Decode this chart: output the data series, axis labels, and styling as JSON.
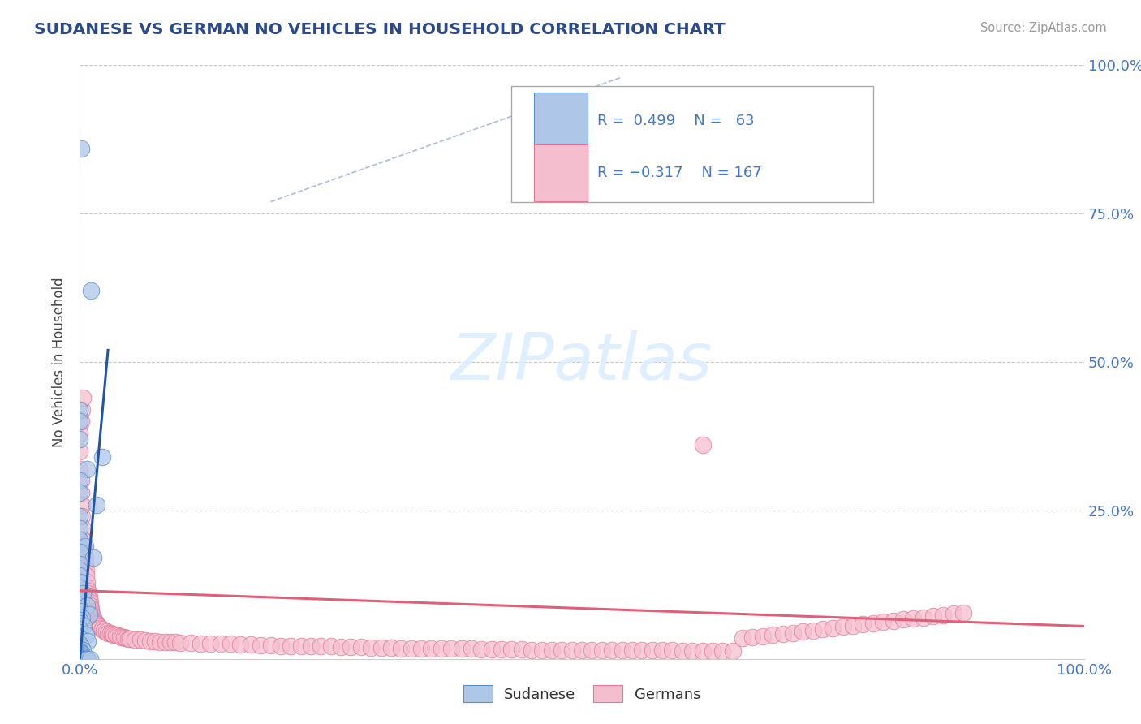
{
  "title": "SUDANESE VS GERMAN NO VEHICLES IN HOUSEHOLD CORRELATION CHART",
  "source": "Source: ZipAtlas.com",
  "ylabel": "No Vehicles in Household",
  "watermark": "ZIPatlas",
  "sudanese_color": "#aec6e8",
  "sudanese_edge": "#5b8ec4",
  "sudanese_line_color": "#2255aa",
  "german_color": "#f5bece",
  "german_edge": "#e07898",
  "german_line_color": "#e0607a",
  "grid_color": "#c8c8c8",
  "title_color": "#2b4a8b",
  "axis_label_color": "#4477cc",
  "dashed_color": "#aabbdd",
  "sudanese_points": [
    [
      0.0015,
      0.86
    ],
    [
      0.011,
      0.62
    ],
    [
      0.0,
      0.42
    ],
    [
      0.022,
      0.34
    ],
    [
      0.0,
      0.4
    ],
    [
      0.0,
      0.37
    ],
    [
      0.007,
      0.32
    ],
    [
      0.0,
      0.3
    ],
    [
      0.0,
      0.28
    ],
    [
      0.017,
      0.26
    ],
    [
      0.0,
      0.24
    ],
    [
      0.0,
      0.22
    ],
    [
      0.0,
      0.2
    ],
    [
      0.005,
      0.19
    ],
    [
      0.0,
      0.18
    ],
    [
      0.013,
      0.17
    ],
    [
      0.0,
      0.16
    ],
    [
      0.0,
      0.15
    ],
    [
      0.0,
      0.14
    ],
    [
      0.0,
      0.13
    ],
    [
      0.0,
      0.12
    ],
    [
      0.003,
      0.11
    ],
    [
      0.0,
      0.1
    ],
    [
      0.007,
      0.09
    ],
    [
      0.0,
      0.085
    ],
    [
      0.0,
      0.08
    ],
    [
      0.009,
      0.075
    ],
    [
      0.002,
      0.07
    ],
    [
      0.0,
      0.065
    ],
    [
      0.0,
      0.06
    ],
    [
      0.004,
      0.055
    ],
    [
      0.0,
      0.05
    ],
    [
      0.0,
      0.045
    ],
    [
      0.006,
      0.04
    ],
    [
      0.0,
      0.035
    ],
    [
      0.008,
      0.03
    ],
    [
      0.0,
      0.025
    ],
    [
      0.001,
      0.02
    ],
    [
      0.0,
      0.018
    ],
    [
      0.0,
      0.016
    ],
    [
      0.003,
      0.015
    ],
    [
      0.0,
      0.013
    ],
    [
      0.0,
      0.012
    ],
    [
      0.001,
      0.01
    ],
    [
      0.0,
      0.009
    ],
    [
      0.002,
      0.008
    ],
    [
      0.0,
      0.007
    ],
    [
      0.0,
      0.006
    ],
    [
      0.001,
      0.005
    ],
    [
      0.0,
      0.004
    ],
    [
      0.0,
      0.003
    ],
    [
      0.0,
      0.002
    ],
    [
      0.0,
      0.001
    ],
    [
      0.0,
      0.0
    ],
    [
      0.001,
      0.0
    ],
    [
      0.002,
      0.0
    ],
    [
      0.003,
      0.0
    ],
    [
      0.004,
      0.0
    ],
    [
      0.005,
      0.0
    ],
    [
      0.006,
      0.0
    ],
    [
      0.007,
      0.0
    ],
    [
      0.008,
      0.0
    ],
    [
      0.01,
      0.0
    ]
  ],
  "german_points": [
    [
      0.0,
      0.38
    ],
    [
      0.0,
      0.35
    ],
    [
      0.0,
      0.32
    ],
    [
      0.001,
      0.3
    ],
    [
      0.001,
      0.28
    ],
    [
      0.002,
      0.26
    ],
    [
      0.002,
      0.24
    ],
    [
      0.003,
      0.22
    ],
    [
      0.003,
      0.2
    ],
    [
      0.004,
      0.19
    ],
    [
      0.004,
      0.18
    ],
    [
      0.005,
      0.17
    ],
    [
      0.005,
      0.16
    ],
    [
      0.006,
      0.15
    ],
    [
      0.006,
      0.14
    ],
    [
      0.007,
      0.13
    ],
    [
      0.007,
      0.12
    ],
    [
      0.008,
      0.115
    ],
    [
      0.008,
      0.11
    ],
    [
      0.009,
      0.105
    ],
    [
      0.009,
      0.1
    ],
    [
      0.01,
      0.095
    ],
    [
      0.01,
      0.09
    ],
    [
      0.011,
      0.085
    ],
    [
      0.011,
      0.08
    ],
    [
      0.012,
      0.075
    ],
    [
      0.013,
      0.07
    ],
    [
      0.014,
      0.065
    ],
    [
      0.015,
      0.062
    ],
    [
      0.016,
      0.06
    ],
    [
      0.017,
      0.058
    ],
    [
      0.018,
      0.056
    ],
    [
      0.019,
      0.054
    ],
    [
      0.02,
      0.052
    ],
    [
      0.022,
      0.05
    ],
    [
      0.024,
      0.048
    ],
    [
      0.026,
      0.046
    ],
    [
      0.028,
      0.044
    ],
    [
      0.03,
      0.043
    ],
    [
      0.032,
      0.042
    ],
    [
      0.034,
      0.041
    ],
    [
      0.036,
      0.04
    ],
    [
      0.038,
      0.039
    ],
    [
      0.04,
      0.038
    ],
    [
      0.042,
      0.037
    ],
    [
      0.044,
      0.036
    ],
    [
      0.046,
      0.035
    ],
    [
      0.048,
      0.034
    ],
    [
      0.05,
      0.034
    ],
    [
      0.055,
      0.033
    ],
    [
      0.06,
      0.032
    ],
    [
      0.065,
      0.031
    ],
    [
      0.07,
      0.03
    ],
    [
      0.075,
      0.03
    ],
    [
      0.08,
      0.029
    ],
    [
      0.085,
      0.029
    ],
    [
      0.09,
      0.028
    ],
    [
      0.095,
      0.028
    ],
    [
      0.1,
      0.027
    ],
    [
      0.11,
      0.027
    ],
    [
      0.12,
      0.026
    ],
    [
      0.13,
      0.025
    ],
    [
      0.14,
      0.025
    ],
    [
      0.15,
      0.025
    ],
    [
      0.16,
      0.024
    ],
    [
      0.17,
      0.024
    ],
    [
      0.18,
      0.023
    ],
    [
      0.19,
      0.023
    ],
    [
      0.2,
      0.022
    ],
    [
      0.21,
      0.022
    ],
    [
      0.22,
      0.022
    ],
    [
      0.23,
      0.021
    ],
    [
      0.24,
      0.021
    ],
    [
      0.25,
      0.021
    ],
    [
      0.26,
      0.02
    ],
    [
      0.27,
      0.02
    ],
    [
      0.28,
      0.02
    ],
    [
      0.29,
      0.019
    ],
    [
      0.3,
      0.019
    ],
    [
      0.31,
      0.019
    ],
    [
      0.32,
      0.018
    ],
    [
      0.33,
      0.018
    ],
    [
      0.34,
      0.018
    ],
    [
      0.35,
      0.018
    ],
    [
      0.36,
      0.017
    ],
    [
      0.37,
      0.017
    ],
    [
      0.38,
      0.017
    ],
    [
      0.39,
      0.017
    ],
    [
      0.4,
      0.016
    ],
    [
      0.41,
      0.016
    ],
    [
      0.42,
      0.016
    ],
    [
      0.43,
      0.016
    ],
    [
      0.44,
      0.016
    ],
    [
      0.45,
      0.015
    ],
    [
      0.46,
      0.015
    ],
    [
      0.47,
      0.015
    ],
    [
      0.48,
      0.015
    ],
    [
      0.49,
      0.015
    ],
    [
      0.5,
      0.015
    ],
    [
      0.51,
      0.015
    ],
    [
      0.52,
      0.015
    ],
    [
      0.53,
      0.014
    ],
    [
      0.54,
      0.014
    ],
    [
      0.55,
      0.014
    ],
    [
      0.56,
      0.014
    ],
    [
      0.57,
      0.014
    ],
    [
      0.58,
      0.014
    ],
    [
      0.59,
      0.014
    ],
    [
      0.6,
      0.013
    ],
    [
      0.61,
      0.013
    ],
    [
      0.62,
      0.013
    ],
    [
      0.63,
      0.013
    ],
    [
      0.64,
      0.013
    ],
    [
      0.65,
      0.013
    ],
    [
      0.66,
      0.035
    ],
    [
      0.67,
      0.037
    ],
    [
      0.68,
      0.038
    ],
    [
      0.69,
      0.04
    ],
    [
      0.7,
      0.042
    ],
    [
      0.71,
      0.044
    ],
    [
      0.72,
      0.046
    ],
    [
      0.73,
      0.048
    ],
    [
      0.74,
      0.05
    ],
    [
      0.75,
      0.052
    ],
    [
      0.76,
      0.054
    ],
    [
      0.77,
      0.056
    ],
    [
      0.78,
      0.058
    ],
    [
      0.79,
      0.06
    ],
    [
      0.8,
      0.062
    ],
    [
      0.81,
      0.064
    ],
    [
      0.82,
      0.066
    ],
    [
      0.83,
      0.068
    ],
    [
      0.84,
      0.07
    ],
    [
      0.85,
      0.072
    ],
    [
      0.86,
      0.074
    ],
    [
      0.87,
      0.076
    ],
    [
      0.88,
      0.078
    ],
    [
      0.62,
      0.36
    ],
    [
      0.001,
      0.4
    ],
    [
      0.002,
      0.42
    ],
    [
      0.003,
      0.44
    ]
  ],
  "sudanese_line_x": [
    0.0,
    0.028
  ],
  "sudanese_line_y": [
    0.0,
    0.52
  ],
  "german_line_x": [
    0.0,
    1.0
  ],
  "german_line_y": [
    0.115,
    0.055
  ],
  "dashed_line_x": [
    0.19,
    0.54
  ],
  "dashed_line_y": [
    0.77,
    0.98
  ],
  "xlim": [
    0.0,
    1.0
  ],
  "ylim": [
    0.0,
    1.0
  ],
  "yticks": [
    0.25,
    0.5,
    0.75,
    1.0
  ],
  "ytick_labels": [
    "25.0%",
    "50.0%",
    "75.0%",
    "100.0%"
  ]
}
